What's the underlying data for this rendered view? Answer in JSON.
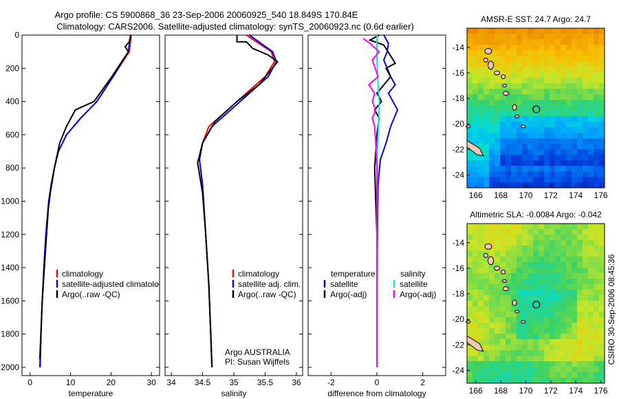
{
  "title": {
    "line1": "Argo profile: CS 5900868_36 23-Sep-2006 20060925_540 18.849S 170.84E",
    "line2": "Climatology: CARS2006. Satellite-adjusted climatology: synTS_20060923.nc (0.6d earlier)"
  },
  "chart_data": [
    {
      "type": "line",
      "name": "temperature-panel",
      "xlabel": "temperature",
      "ylabel": "",
      "xlim": [
        -2,
        32
      ],
      "ylim": [
        2050,
        0
      ],
      "xticks": [
        0,
        10,
        20,
        30
      ],
      "yticks": [
        0,
        200,
        400,
        600,
        800,
        1000,
        1200,
        1400,
        1600,
        1800,
        2000
      ],
      "legend": [
        "climatology",
        "satellite-adjusted climatology",
        "Argo(..raw -QC)"
      ],
      "series": [
        {
          "name": "climatology",
          "color": "#ff0000",
          "points": [
            [
              25,
              0
            ],
            [
              24.5,
              100
            ],
            [
              20.5,
              250
            ],
            [
              16.5,
              400
            ],
            [
              12.5,
              500
            ],
            [
              9,
              600
            ],
            [
              7,
              700
            ],
            [
              6,
              800
            ],
            [
              5.2,
              900
            ],
            [
              4.6,
              1000
            ],
            [
              3.9,
              1200
            ],
            [
              3.4,
              1400
            ],
            [
              3,
              1600
            ],
            [
              2.7,
              1800
            ],
            [
              2.5,
              2000
            ]
          ]
        },
        {
          "name": "satellite-adjusted climatology",
          "color": "#0000ff",
          "points": [
            [
              24.8,
              0
            ],
            [
              24.3,
              100
            ],
            [
              20.5,
              250
            ],
            [
              16.5,
              400
            ],
            [
              12.5,
              500
            ],
            [
              9,
              600
            ],
            [
              7,
              700
            ],
            [
              6,
              800
            ],
            [
              5.2,
              900
            ],
            [
              4.6,
              1000
            ],
            [
              3.9,
              1200
            ],
            [
              3.4,
              1400
            ],
            [
              3,
              1600
            ],
            [
              2.7,
              1800
            ],
            [
              2.4,
              2000
            ]
          ]
        },
        {
          "name": "Argo(..raw -QC)",
          "color": "#000000",
          "points": [
            [
              24.9,
              0
            ],
            [
              24.5,
              40
            ],
            [
              23.5,
              70
            ],
            [
              24.3,
              100
            ],
            [
              20.2,
              250
            ],
            [
              15.8,
              400
            ],
            [
              11.2,
              450
            ],
            [
              9,
              550
            ],
            [
              7.3,
              650
            ],
            [
              6,
              800
            ],
            [
              5,
              950
            ],
            [
              4.5,
              1050
            ],
            [
              3.8,
              1300
            ],
            [
              3,
              1600
            ],
            [
              2.4,
              1950
            ]
          ]
        }
      ]
    },
    {
      "type": "line",
      "name": "salinity-panel",
      "xlabel": "salinity",
      "xlim": [
        33.9,
        36.1
      ],
      "ylim": [
        2050,
        0
      ],
      "xticks": [
        34,
        34.5,
        35,
        35.5,
        36
      ],
      "legend": [
        "climatology",
        "satellite adj. clim.",
        "Argo(..raw -QC)"
      ],
      "annotation": [
        "Argo AUSTRALIA",
        "PI: Susan Wijffels"
      ],
      "series": [
        {
          "name": "climatology",
          "color": "#ff0000",
          "points": [
            [
              35.2,
              0
            ],
            [
              35.6,
              100
            ],
            [
              35.65,
              160
            ],
            [
              35.5,
              250
            ],
            [
              35.2,
              350
            ],
            [
              34.9,
              450
            ],
            [
              34.6,
              550
            ],
            [
              34.5,
              650
            ],
            [
              34.45,
              750
            ],
            [
              34.5,
              900
            ],
            [
              34.55,
              1200
            ],
            [
              34.6,
              1500
            ],
            [
              34.63,
              1800
            ],
            [
              34.65,
              2000
            ]
          ]
        },
        {
          "name": "satellite adj. clim.",
          "color": "#0000ff",
          "points": [
            [
              35.25,
              0
            ],
            [
              35.62,
              100
            ],
            [
              35.68,
              160
            ],
            [
              35.55,
              250
            ],
            [
              35.25,
              350
            ],
            [
              34.95,
              450
            ],
            [
              34.65,
              550
            ],
            [
              34.5,
              650
            ],
            [
              34.45,
              750
            ],
            [
              34.5,
              900
            ],
            [
              34.55,
              1200
            ],
            [
              34.6,
              1500
            ],
            [
              34.63,
              1800
            ],
            [
              34.65,
              2000
            ]
          ]
        },
        {
          "name": "Argo(..raw -QC)",
          "color": "#000000",
          "points": [
            [
              35.05,
              0
            ],
            [
              35.05,
              40
            ],
            [
              35.2,
              40
            ],
            [
              35.3,
              80
            ],
            [
              35.55,
              120
            ],
            [
              35.7,
              160
            ],
            [
              35.4,
              300
            ],
            [
              35.05,
              400
            ],
            [
              34.7,
              520
            ],
            [
              34.5,
              650
            ],
            [
              34.42,
              770
            ],
            [
              34.5,
              950
            ],
            [
              34.55,
              1200
            ],
            [
              34.6,
              1500
            ],
            [
              34.63,
              1800
            ],
            [
              34.65,
              2000
            ]
          ]
        }
      ]
    },
    {
      "type": "line",
      "name": "difference-panel",
      "xlabel": "difference from climatology",
      "xlim": [
        -3,
        3
      ],
      "ylim": [
        2050,
        0
      ],
      "xticks": [
        -2,
        0,
        2
      ],
      "legend_left_title": "temperature",
      "legend_right_title": "salinity",
      "legend_left": [
        "satellite",
        "Argo(-adj)"
      ],
      "legend_right": [
        "satellite",
        "Argo(-adj)"
      ],
      "series": [
        {
          "name": "temperature satellite",
          "color": "#0000ff",
          "points": [
            [
              0.3,
              0
            ],
            [
              0.5,
              50
            ],
            [
              0.45,
              100
            ],
            [
              0.3,
              150
            ],
            [
              0.6,
              250
            ],
            [
              0.8,
              300
            ],
            [
              0.5,
              350
            ],
            [
              0.9,
              450
            ],
            [
              0.6,
              550
            ],
            [
              0.4,
              650
            ],
            [
              0.15,
              750
            ],
            [
              0.05,
              900
            ],
            [
              0.02,
              1200
            ],
            [
              0,
              1500
            ],
            [
              0,
              2000
            ]
          ]
        },
        {
          "name": "temperature Argo(-adj)",
          "color": "#000000",
          "points": [
            [
              0.1,
              0
            ],
            [
              -0.3,
              30
            ],
            [
              0.3,
              60
            ],
            [
              0.8,
              170
            ],
            [
              0.4,
              200
            ],
            [
              0.6,
              250
            ],
            [
              0,
              350
            ],
            [
              0.2,
              400
            ],
            [
              -0.1,
              450
            ],
            [
              0.1,
              500
            ],
            [
              0,
              600
            ],
            [
              -0.1,
              800
            ],
            [
              -0.05,
              1000
            ],
            [
              0,
              1200
            ],
            [
              0,
              2000
            ]
          ]
        },
        {
          "name": "salinity satellite",
          "color": "#00e5ee",
          "points": [
            [
              0,
              0
            ],
            [
              0,
              150
            ],
            [
              0.05,
              300
            ],
            [
              0.1,
              400
            ],
            [
              0.1,
              450
            ],
            [
              0.02,
              700
            ],
            [
              0,
              1000
            ],
            [
              0,
              2000
            ]
          ]
        },
        {
          "name": "salinity Argo(-adj)",
          "color": "#ff00ff",
          "points": [
            [
              -0.6,
              20
            ],
            [
              -0.3,
              50
            ],
            [
              0.1,
              100
            ],
            [
              -0.2,
              150
            ],
            [
              0.05,
              250
            ],
            [
              -0.35,
              300
            ],
            [
              -0.1,
              350
            ],
            [
              -0.2,
              400
            ],
            [
              -0.05,
              450
            ],
            [
              -0.2,
              500
            ],
            [
              -0.1,
              550
            ],
            [
              -0.05,
              650
            ],
            [
              0,
              800
            ],
            [
              0,
              2000
            ]
          ]
        }
      ]
    },
    {
      "type": "heatmap",
      "name": "sst-map",
      "title": "AMSR-E SST: 24.7  Argo: 24.7",
      "xticks": [
        166,
        168,
        170,
        172,
        174,
        176
      ],
      "yticks": [
        -14,
        -16,
        -18,
        -20,
        -22,
        -24
      ],
      "xlim": [
        165.3,
        176.3
      ],
      "ylim": [
        -25,
        -12.5
      ],
      "marker": [
        170.84,
        -18.849
      ]
    },
    {
      "type": "heatmap",
      "name": "sla-map",
      "title": "Altimetric SLA: -0.0084  Argo: -0.042",
      "xticks": [
        166,
        168,
        170,
        172,
        174,
        176
      ],
      "yticks": [
        -14,
        -16,
        -18,
        -20,
        -22,
        -24
      ],
      "xlim": [
        165.3,
        176.3
      ],
      "ylim": [
        -25,
        -12.5
      ],
      "marker": [
        170.84,
        -18.849
      ]
    }
  ],
  "side_label": "CSIRO 30-Sep-2006 08:45:36"
}
